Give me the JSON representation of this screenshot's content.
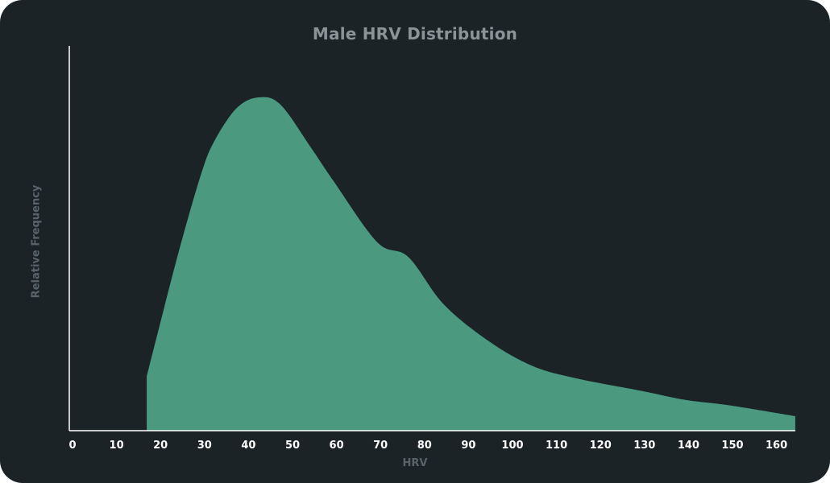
{
  "chart_data": {
    "type": "area",
    "title": "Male HRV Distribution",
    "xlabel": "HRV",
    "ylabel": "Relative Frequency",
    "xlim": [
      0,
      165
    ],
    "ylim": [
      0,
      1
    ],
    "x_ticks": [
      0,
      10,
      20,
      30,
      40,
      50,
      60,
      70,
      80,
      90,
      100,
      110,
      120,
      130,
      140,
      150,
      160
    ],
    "grid": false,
    "legend": "none",
    "colors": {
      "background": "#1b2327",
      "fill": "#4b9a80",
      "axis": "#ffffff",
      "title": "#8a9396",
      "label": "#59646a"
    },
    "series": [
      {
        "x": [
          17.6,
          17.6,
          20,
          25,
          30,
          33,
          38,
          43,
          48,
          55,
          60,
          70,
          77,
          85,
          95,
          105,
          115,
          130,
          140,
          150,
          165,
          165
        ],
        "values": [
          0,
          0.15,
          0.265,
          0.5,
          0.71,
          0.8,
          0.89,
          0.92,
          0.9,
          0.78,
          0.69,
          0.52,
          0.48,
          0.35,
          0.25,
          0.18,
          0.145,
          0.11,
          0.085,
          0.07,
          0.04,
          0
        ]
      }
    ]
  }
}
